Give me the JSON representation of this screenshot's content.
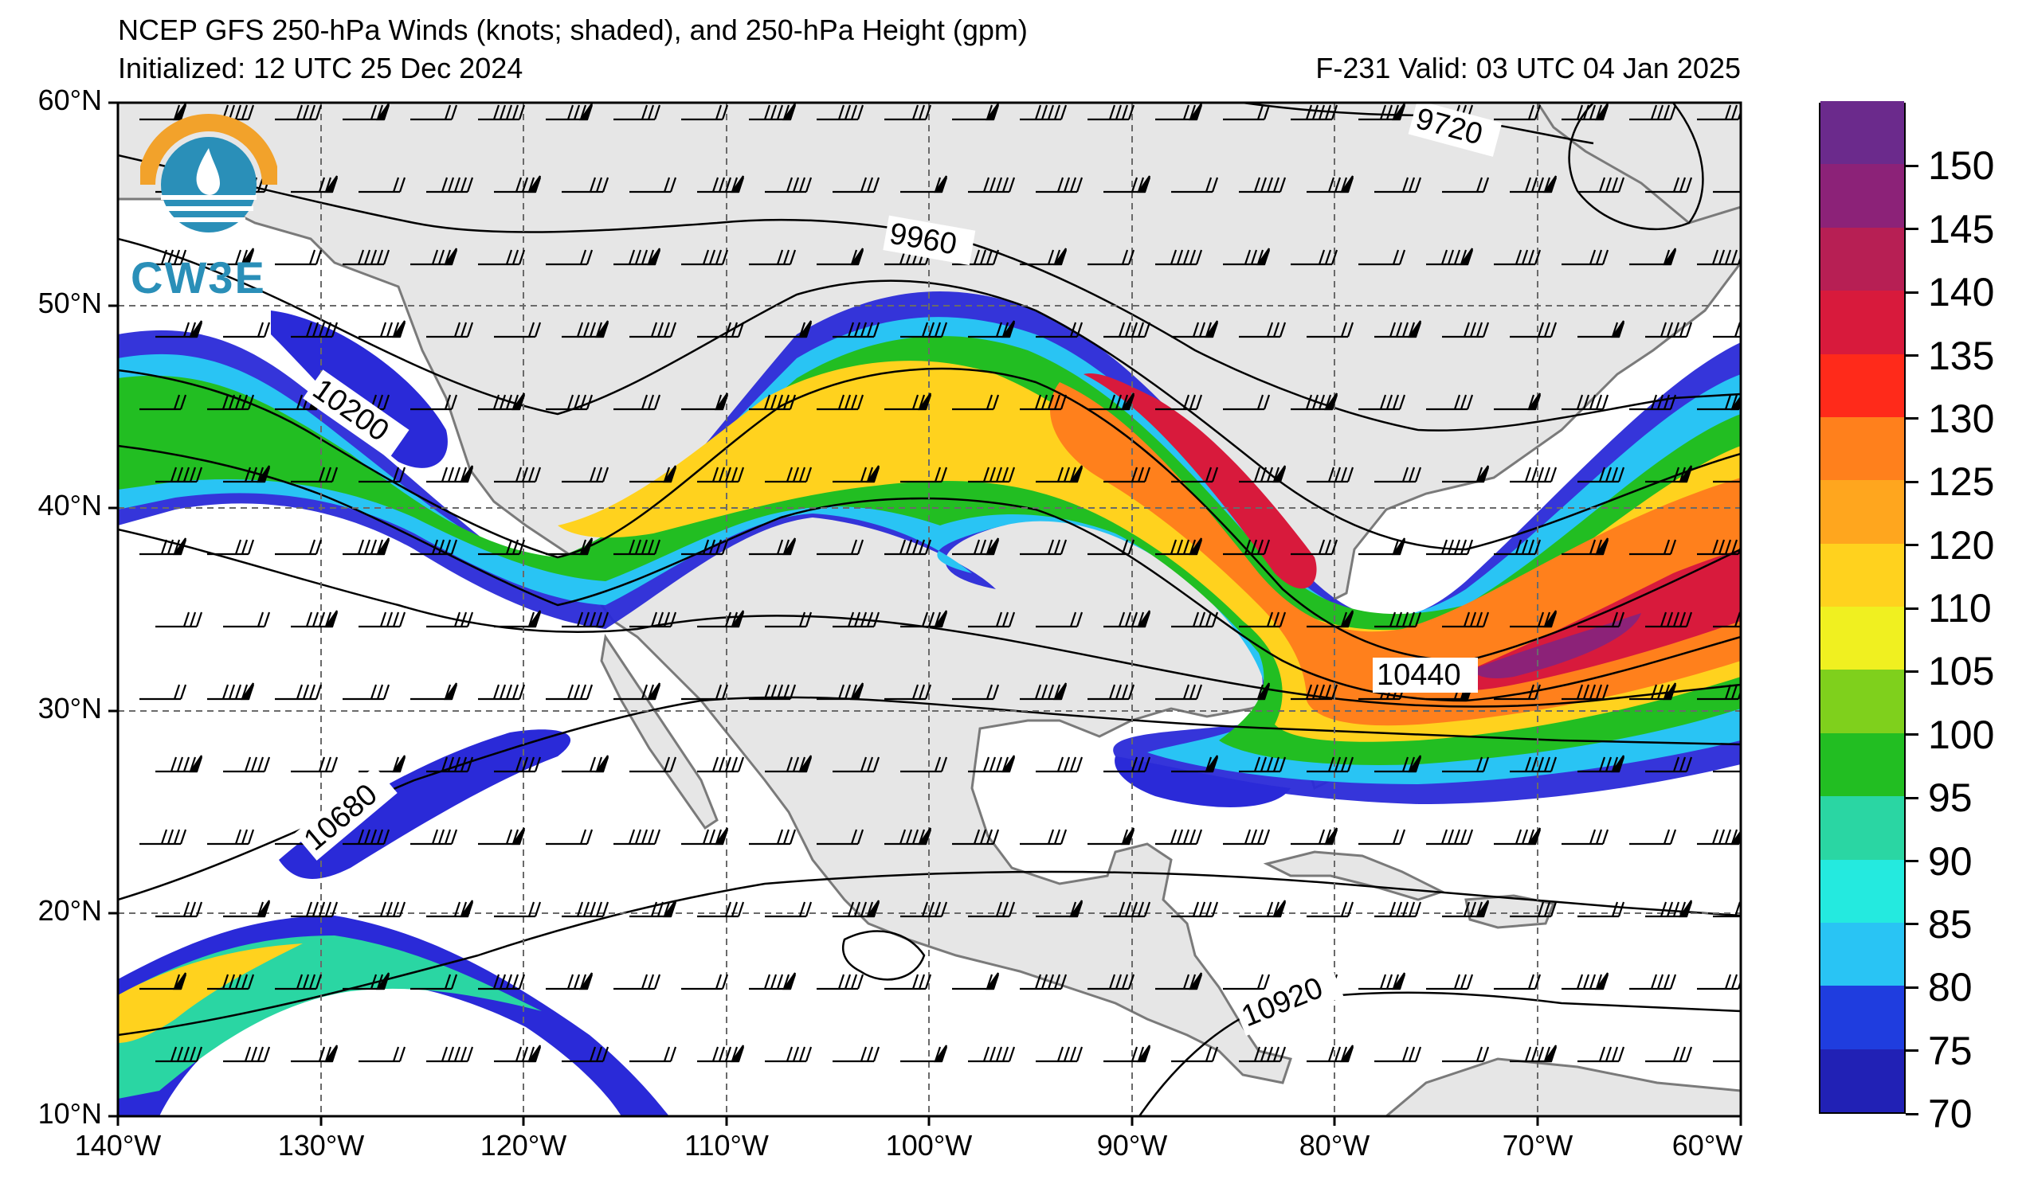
{
  "header": {
    "title": "NCEP GFS 250-hPa Winds (knots; shaded), and 250-hPa Height (gpm)",
    "initialized": "Initialized: 12 UTC 25 Dec 2024",
    "valid": "F-231  Valid: 03 UTC 04 Jan 2025"
  },
  "logo": {
    "text": "CW3E"
  },
  "map": {
    "lat_labels": [
      "60°N",
      "50°N",
      "40°N",
      "30°N",
      "20°N",
      "10°N"
    ],
    "lon_labels": [
      "140°W",
      "130°W",
      "120°W",
      "110°W",
      "100°W",
      "90°W",
      "80°W",
      "70°W",
      "60°W"
    ],
    "contour_labels": [
      "9720",
      "9960",
      "10200",
      "10440",
      "10680",
      "10920"
    ],
    "extent": {
      "lon": [
        -140,
        -60
      ],
      "lat": [
        10,
        60
      ]
    },
    "gridlines": "dashed",
    "land_color": "#e6e6e6"
  },
  "colorbar": {
    "labels": [
      "70",
      "75",
      "80",
      "85",
      "90",
      "95",
      "100",
      "105",
      "110",
      "120",
      "125",
      "130",
      "135",
      "140",
      "145",
      "150"
    ],
    "colors": [
      "#2121b5",
      "#1f3ddf",
      "#29c4f4",
      "#24eadf",
      "#2ad6a3",
      "#22be22",
      "#7fd01c",
      "#f0f020",
      "#ffd21e",
      "#ffa61e",
      "#ff801c",
      "#ff2a1a",
      "#d81a3c",
      "#b71f54",
      "#8c2278",
      "#6b2a8c"
    ]
  }
}
